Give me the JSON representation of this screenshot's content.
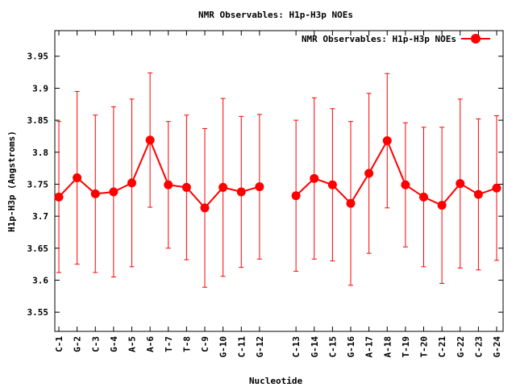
{
  "chart_data": {
    "type": "line",
    "title": "NMR Observables: H1p-H3p NOEs",
    "xlabel": "Nucleotide",
    "ylabel": "H1p-H3p (Angstroms)",
    "ylim": [
      3.52,
      3.99
    ],
    "yticks": [
      3.55,
      3.6,
      3.65,
      3.7,
      3.75,
      3.8,
      3.85,
      3.9,
      3.95
    ],
    "legend_position": "top-right",
    "grid": false,
    "series_color": "#ff0000",
    "categories": [
      "C-1",
      "G-2",
      "C-3",
      "G-4",
      "A-5",
      "A-6",
      "T-7",
      "T-8",
      "C-9",
      "G-10",
      "C-11",
      "G-12",
      "C-13",
      "G-14",
      "C-15",
      "G-16",
      "A-17",
      "A-18",
      "T-19",
      "T-20",
      "C-21",
      "G-22",
      "C-23",
      "G-24"
    ],
    "series": [
      {
        "name": "NMR Observables: H1p-H3p NOEs",
        "segments": [
          [
            0,
            11
          ],
          [
            12,
            23
          ]
        ],
        "values": [
          3.73,
          3.76,
          3.735,
          3.738,
          3.752,
          3.819,
          3.749,
          3.745,
          3.713,
          3.745,
          3.738,
          3.746,
          3.732,
          3.759,
          3.749,
          3.72,
          3.767,
          3.818,
          3.749,
          3.73,
          3.717,
          3.751,
          3.734,
          3.744
        ],
        "errors": [
          0.118,
          0.135,
          0.123,
          0.133,
          0.131,
          0.105,
          0.099,
          0.113,
          0.124,
          0.139,
          0.118,
          0.113,
          0.118,
          0.126,
          0.119,
          0.128,
          0.125,
          0.105,
          0.097,
          0.109,
          0.122,
          0.132,
          0.118,
          0.113
        ]
      }
    ]
  }
}
